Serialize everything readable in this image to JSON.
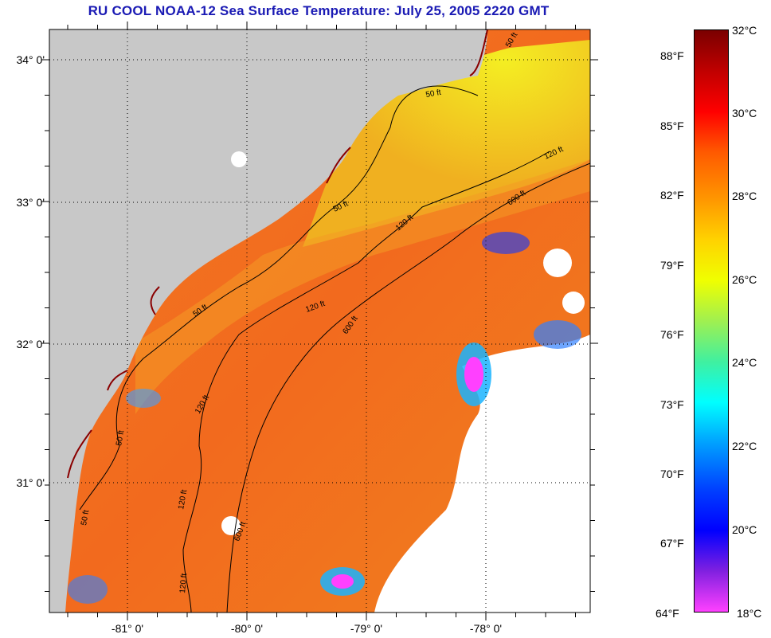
{
  "title": "RU COOL  NOAA-12  Sea Surface Temperature:  July 25, 2005 2220 GMT",
  "map": {
    "lat_labels": [
      "34° 0'",
      "33° 0'",
      "32° 0'",
      "31° 0'"
    ],
    "lon_labels": [
      "-81° 0'",
      "-80° 0'",
      "-79° 0'",
      "-78° 0'"
    ],
    "contour_labels": [
      "50 ft",
      "50 ft",
      "50 ft",
      "50 ft",
      "50 ft",
      "50 ft",
      "120 ft",
      "120 ft",
      "120 ft",
      "120 ft",
      "120 ft",
      "120 ft",
      "600 ft",
      "600 ft",
      "600 ft"
    ],
    "colors": {
      "land": "#c8c8c8",
      "cloud": "#ffffff",
      "nearshore": "#f0e020",
      "shelf": "#f08820",
      "offshore": "#f26a1e",
      "cold_eddy": "#3030e0"
    }
  },
  "colorbar": {
    "fahrenheit": [
      "88°F",
      "85°F",
      "82°F",
      "79°F",
      "76°F",
      "73°F",
      "70°F",
      "67°F",
      "64°F"
    ],
    "celsius": [
      "32°C",
      "30°C",
      "28°C",
      "26°C",
      "24°C",
      "22°C",
      "20°C",
      "18°C"
    ],
    "colors": [
      "#7a0000",
      "#c00000",
      "#ff0000",
      "#ff5a00",
      "#ff9600",
      "#ffd200",
      "#f0ff00",
      "#a0f050",
      "#40f0a0",
      "#00ffff",
      "#00a0ff",
      "#0040ff",
      "#0000ff",
      "#8020e0",
      "#ff40ff"
    ]
  }
}
